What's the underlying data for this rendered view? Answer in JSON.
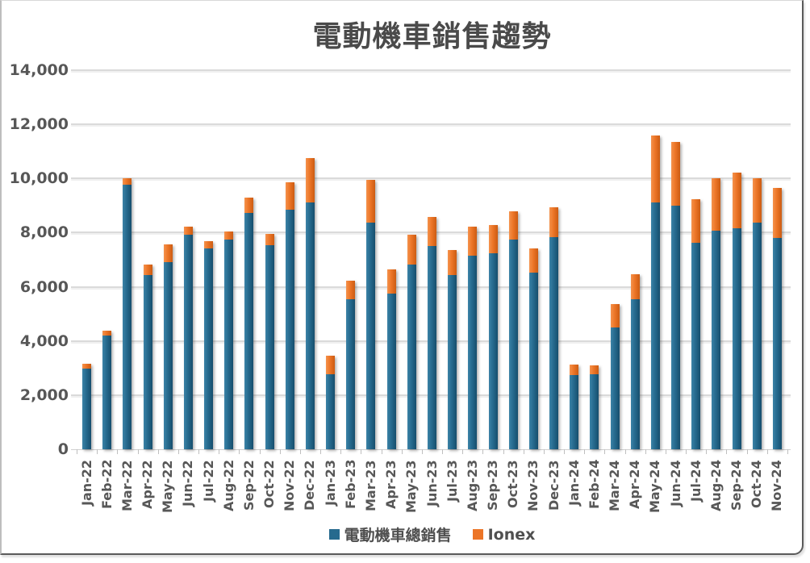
{
  "title": "電動機車銷售趨勢",
  "chart_data": {
    "type": "bar",
    "stacked": true,
    "title": "電動機車銷售趨勢",
    "xlabel": "",
    "ylabel": "",
    "ylim": [
      0,
      14000
    ],
    "ytick_step": 2000,
    "ytick_labels": [
      "0",
      "2,000",
      "4,000",
      "6,000",
      "8,000",
      "10,000",
      "12,000",
      "14,000"
    ],
    "grid": true,
    "legend_position": "bottom",
    "categories": [
      "Jan-22",
      "Feb-22",
      "Mar-22",
      "Apr-22",
      "May-22",
      "Jun-22",
      "Jul-22",
      "Aug-22",
      "Sep-22",
      "Oct-22",
      "Nov-22",
      "Dec-22",
      "Jan-23",
      "Feb-23",
      "Mar-23",
      "Apr-23",
      "May-23",
      "Jun-23",
      "Jul-23",
      "Aug-23",
      "Sep-23",
      "Oct-23",
      "Nov-23",
      "Dec-23",
      "Jan-24",
      "Feb-24",
      "Mar-24",
      "Apr-24",
      "May-24",
      "Jun-24",
      "Jul-24",
      "Aug-24",
      "Sep-24",
      "Oct-24",
      "Nov-24"
    ],
    "series": [
      {
        "name": "電動機車總銷售",
        "color": "#266a8e",
        "color_light": "#3b82a6",
        "color_dark": "#164e6d",
        "values": [
          2990,
          4200,
          9770,
          6420,
          6900,
          7910,
          7420,
          7760,
          8740,
          7550,
          8850,
          9110,
          2780,
          5550,
          8360,
          5750,
          6830,
          7500,
          6420,
          7150,
          7230,
          7760,
          6520,
          7820,
          2750,
          2780,
          4500,
          5550,
          9130,
          9000,
          7640,
          8070,
          8160,
          8360,
          7790
        ]
      },
      {
        "name": "Ionex",
        "color": "#ec7527",
        "color_light": "#f5924c",
        "color_dark": "#cc5c12",
        "values": [
          170,
          180,
          230,
          410,
          680,
          300,
          260,
          280,
          550,
          400,
          1000,
          1650,
          680,
          670,
          1580,
          880,
          1090,
          1080,
          930,
          1080,
          1050,
          1030,
          900,
          1120,
          370,
          320,
          850,
          920,
          2470,
          2350,
          1600,
          1950,
          2060,
          1640,
          1860
        ]
      }
    ]
  },
  "colors": {
    "grid": "#dadada",
    "axis_text": "#575757",
    "title_text": "#4a4a4a"
  }
}
